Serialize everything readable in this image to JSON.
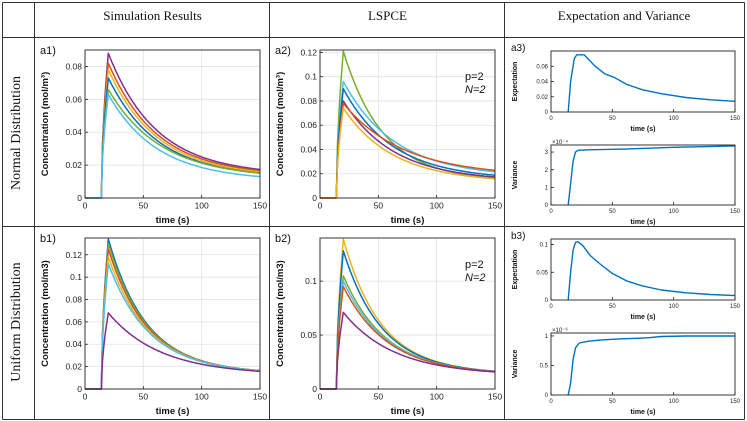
{
  "table": {
    "col_headers": [
      "Simulation Results",
      "LSPCE",
      "Expectation and Variance"
    ],
    "row_labels": [
      "Normal Distribution",
      "Uniform Distribution"
    ]
  },
  "chart_data": [
    {
      "id": "a1",
      "type": "line",
      "panel_label": "a1)",
      "xlabel": "time (s)",
      "ylabel": "Concentration (mol/m³)",
      "xlim": [
        0,
        150
      ],
      "ylim": [
        0,
        0.09
      ],
      "xticks": [
        0,
        50,
        100,
        150
      ],
      "yticks": [
        0,
        0.02,
        0.04,
        0.06,
        0.08
      ],
      "ytick_labels": [
        "0",
        "0.02",
        "0.04",
        "0.06",
        "0.08"
      ],
      "onset": 14,
      "peak_time": 20,
      "grid": true,
      "series": [
        {
          "name": "s1",
          "color": "#7E2F8E",
          "peak": 0.088,
          "end": 0.012
        },
        {
          "name": "s2",
          "color": "#D95319",
          "peak": 0.082,
          "end": 0.0115
        },
        {
          "name": "s3",
          "color": "#EDB120",
          "peak": 0.078,
          "end": 0.011
        },
        {
          "name": "s4",
          "color": "#0072BD",
          "peak": 0.073,
          "end": 0.0105
        },
        {
          "name": "s5",
          "color": "#77AC30",
          "peak": 0.066,
          "end": 0.0105
        },
        {
          "name": "s6",
          "color": "#4DBEEE",
          "peak": 0.063,
          "end": 0.009
        }
      ]
    },
    {
      "id": "a2",
      "type": "line",
      "panel_label": "a2)",
      "xlabel": "time (s)",
      "ylabel": "Concentration (mol/m³)",
      "xlim": [
        0,
        150
      ],
      "ylim": [
        0,
        0.122
      ],
      "xticks": [
        0,
        50,
        100,
        150
      ],
      "yticks": [
        0,
        0.02,
        0.04,
        0.06,
        0.08,
        0.1,
        0.12
      ],
      "ytick_labels": [
        "0",
        "0.02",
        "0.04",
        "0.06",
        "0.08",
        "0.1",
        "0.12"
      ],
      "onset": 14,
      "peak_time": 20,
      "grid": true,
      "annotation": [
        "p=2",
        "N=2"
      ],
      "series": [
        {
          "name": "s1",
          "color": "#77AC30",
          "peak": 0.121,
          "end": 0.011
        },
        {
          "name": "s2",
          "color": "#4DBEEE",
          "peak": 0.096,
          "end": 0.015
        },
        {
          "name": "s3",
          "color": "#0072BD",
          "peak": 0.09,
          "end": 0.013
        },
        {
          "name": "s4",
          "color": "#7E2F8E",
          "peak": 0.08,
          "end": 0.012
        },
        {
          "name": "s5",
          "color": "#D95319",
          "peak": 0.078,
          "end": 0.016
        },
        {
          "name": "s6",
          "color": "#EDB120",
          "peak": 0.074,
          "end": 0.011
        }
      ]
    },
    {
      "id": "a3e",
      "type": "line",
      "panel_label": "a3)",
      "xlabel": "time (s)",
      "ylabel": "Expectation",
      "xlim": [
        0,
        150
      ],
      "ylim": [
        0,
        0.08
      ],
      "xticks": [
        0,
        50,
        100,
        150
      ],
      "yticks": [
        0,
        0.02,
        0.04,
        0.06
      ],
      "ytick_labels": [
        "0",
        "0.02",
        "0.04",
        "0.06"
      ],
      "onset": 14,
      "grid": false,
      "series": [
        {
          "name": "expectation",
          "color": "#0072BD",
          "points": [
            [
              14,
              0
            ],
            [
              16,
              0.04
            ],
            [
              19,
              0.07
            ],
            [
              21,
              0.075
            ],
            [
              27,
              0.075
            ],
            [
              30,
              0.07
            ],
            [
              36,
              0.06
            ],
            [
              44,
              0.05
            ],
            [
              52,
              0.045
            ],
            [
              62,
              0.036
            ],
            [
              75,
              0.029
            ],
            [
              90,
              0.024
            ],
            [
              110,
              0.019
            ],
            [
              130,
              0.016
            ],
            [
              150,
              0.014
            ]
          ]
        }
      ]
    },
    {
      "id": "a3v",
      "type": "line",
      "xlabel": "time (s)",
      "ylabel": "Variance",
      "exponent_label": "×10⁻⁴",
      "xlim": [
        0,
        150
      ],
      "ylim": [
        0,
        3.4
      ],
      "xticks": [
        0,
        50,
        100,
        150
      ],
      "yticks": [
        0,
        1,
        2,
        3
      ],
      "ytick_labels": [
        "0",
        "1",
        "2",
        "3"
      ],
      "grid": false,
      "series": [
        {
          "name": "variance",
          "color": "#0072BD",
          "points": [
            [
              14,
              0
            ],
            [
              16,
              1.2
            ],
            [
              18,
              2.5
            ],
            [
              20,
              3.0
            ],
            [
              22,
              3.1
            ],
            [
              30,
              3.13
            ],
            [
              60,
              3.17
            ],
            [
              100,
              3.27
            ],
            [
              150,
              3.35
            ]
          ]
        }
      ]
    },
    {
      "id": "b1",
      "type": "line",
      "panel_label": "b1)",
      "xlabel": "time (s)",
      "ylabel": "Concentration (mol/m3)",
      "xlim": [
        0,
        150
      ],
      "ylim": [
        0,
        0.135
      ],
      "xticks": [
        0,
        50,
        100,
        150
      ],
      "yticks": [
        0,
        0.02,
        0.04,
        0.06,
        0.08,
        0.1,
        0.12
      ],
      "ytick_labels": [
        "0",
        "0.02",
        "0.04",
        "0.06",
        "0.08",
        "0.1",
        "0.12"
      ],
      "onset": 14,
      "peak_time": 20,
      "grid": true,
      "series": [
        {
          "name": "s1",
          "color": "#0072BD",
          "peak": 0.134,
          "end": 0.011
        },
        {
          "name": "s2",
          "color": "#77AC30",
          "peak": 0.13,
          "end": 0.011
        },
        {
          "name": "s3",
          "color": "#D95319",
          "peak": 0.125,
          "end": 0.011
        },
        {
          "name": "s4",
          "color": "#EDB120",
          "peak": 0.118,
          "end": 0.011
        },
        {
          "name": "s5",
          "color": "#4DBEEE",
          "peak": 0.112,
          "end": 0.011
        },
        {
          "name": "s6",
          "color": "#7E2F8E",
          "peak": 0.068,
          "end": 0.011
        }
      ]
    },
    {
      "id": "b2",
      "type": "line",
      "panel_label": "b2)",
      "xlabel": "time (s)",
      "ylabel": "Concentration (mol/m3)",
      "xlim": [
        0,
        150
      ],
      "ylim": [
        0,
        0.14
      ],
      "xticks": [
        0,
        50,
        100,
        150
      ],
      "yticks": [
        0,
        0.05,
        0.1
      ],
      "ytick_labels": [
        "0",
        "0.05",
        "0.1"
      ],
      "onset": 14,
      "peak_time": 20,
      "grid": true,
      "annotation": [
        "p=2",
        "N=2"
      ],
      "series": [
        {
          "name": "s1",
          "color": "#EDB120",
          "peak": 0.139,
          "end": 0.011
        },
        {
          "name": "s2",
          "color": "#0072BD",
          "peak": 0.128,
          "end": 0.011
        },
        {
          "name": "s3",
          "color": "#77AC30",
          "peak": 0.105,
          "end": 0.011
        },
        {
          "name": "s4",
          "color": "#4DBEEE",
          "peak": 0.1,
          "end": 0.011
        },
        {
          "name": "s5",
          "color": "#D95319",
          "peak": 0.095,
          "end": 0.011
        },
        {
          "name": "s6",
          "color": "#7E2F8E",
          "peak": 0.071,
          "end": 0.011
        }
      ]
    },
    {
      "id": "b3e",
      "type": "line",
      "panel_label": "b3)",
      "xlabel": "time (s)",
      "ylabel": "Expectation",
      "xlim": [
        0,
        150
      ],
      "ylim": [
        0,
        0.11
      ],
      "xticks": [
        0,
        50,
        100,
        150
      ],
      "yticks": [
        0,
        0.05,
        0.1
      ],
      "ytick_labels": [
        "0",
        "0.05",
        "0.1"
      ],
      "onset": 14,
      "grid": false,
      "series": [
        {
          "name": "expectation",
          "color": "#0072BD",
          "points": [
            [
              14,
              0
            ],
            [
              16,
              0.05
            ],
            [
              18,
              0.09
            ],
            [
              20,
              0.104
            ],
            [
              22,
              0.105
            ],
            [
              26,
              0.098
            ],
            [
              32,
              0.08
            ],
            [
              40,
              0.065
            ],
            [
              50,
              0.048
            ],
            [
              62,
              0.034
            ],
            [
              75,
              0.025
            ],
            [
              90,
              0.018
            ],
            [
              110,
              0.013
            ],
            [
              130,
              0.01
            ],
            [
              150,
              0.008
            ]
          ]
        }
      ]
    },
    {
      "id": "b3v",
      "type": "line",
      "xlabel": "time (s)",
      "ylabel": "Variance",
      "exponent_label": "×10⁻⁶",
      "xlim": [
        0,
        150
      ],
      "ylim": [
        0,
        1.05
      ],
      "xticks": [
        0,
        50,
        100,
        150
      ],
      "yticks": [
        0,
        0.5,
        1
      ],
      "ytick_labels": [
        "0",
        "0.5",
        "1"
      ],
      "grid": false,
      "series": [
        {
          "name": "variance",
          "color": "#0072BD",
          "points": [
            [
              14,
              0
            ],
            [
              16,
              0.2
            ],
            [
              18,
              0.6
            ],
            [
              20,
              0.8
            ],
            [
              23,
              0.88
            ],
            [
              30,
              0.91
            ],
            [
              40,
              0.93
            ],
            [
              55,
              0.95
            ],
            [
              70,
              0.96
            ],
            [
              80,
              0.97
            ],
            [
              90,
              0.99
            ],
            [
              110,
              1.0
            ],
            [
              150,
              1.0
            ]
          ]
        }
      ]
    }
  ]
}
